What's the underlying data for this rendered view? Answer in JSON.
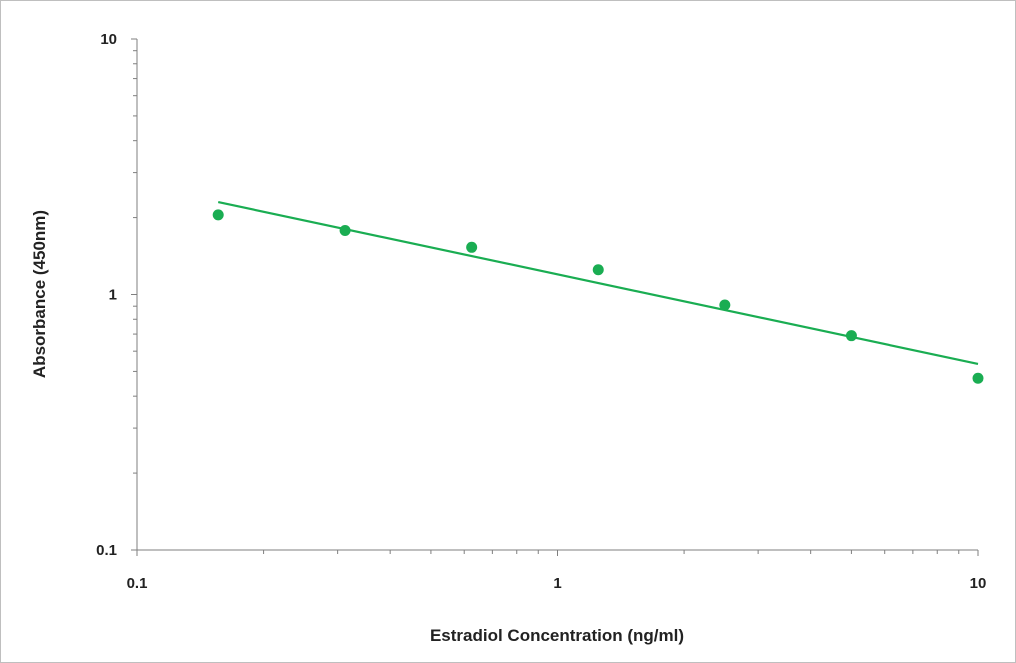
{
  "chart_data": {
    "type": "scatter",
    "title": "",
    "xlabel": "Estradiol Concentration (ng/ml)",
    "ylabel": "Absorbance (450nm)",
    "x_scale": "log",
    "y_scale": "log",
    "xlim": [
      0.1,
      10
    ],
    "ylim": [
      0.1,
      10
    ],
    "x_ticks": [
      {
        "value": 0.1,
        "label": "0.1"
      },
      {
        "value": 1,
        "label": "1"
      },
      {
        "value": 10,
        "label": "10"
      }
    ],
    "y_ticks": [
      {
        "value": 10,
        "label": "10"
      },
      {
        "value": 1,
        "label": "1"
      },
      {
        "value": 0.1,
        "label": "0.1"
      }
    ],
    "grid": false,
    "legend": "none",
    "series": [
      {
        "x": [
          0.156,
          0.3125,
          0.625,
          1.25,
          2.5,
          5,
          10
        ],
        "y": [
          2.05,
          1.78,
          1.53,
          1.25,
          0.91,
          0.69,
          0.47
        ],
        "color": "#1aad52",
        "marker": "circle"
      }
    ],
    "trendline": {
      "type": "power",
      "x": [
        0.156,
        10
      ],
      "y": [
        2.3,
        0.535
      ],
      "color": "#1aad52"
    }
  }
}
